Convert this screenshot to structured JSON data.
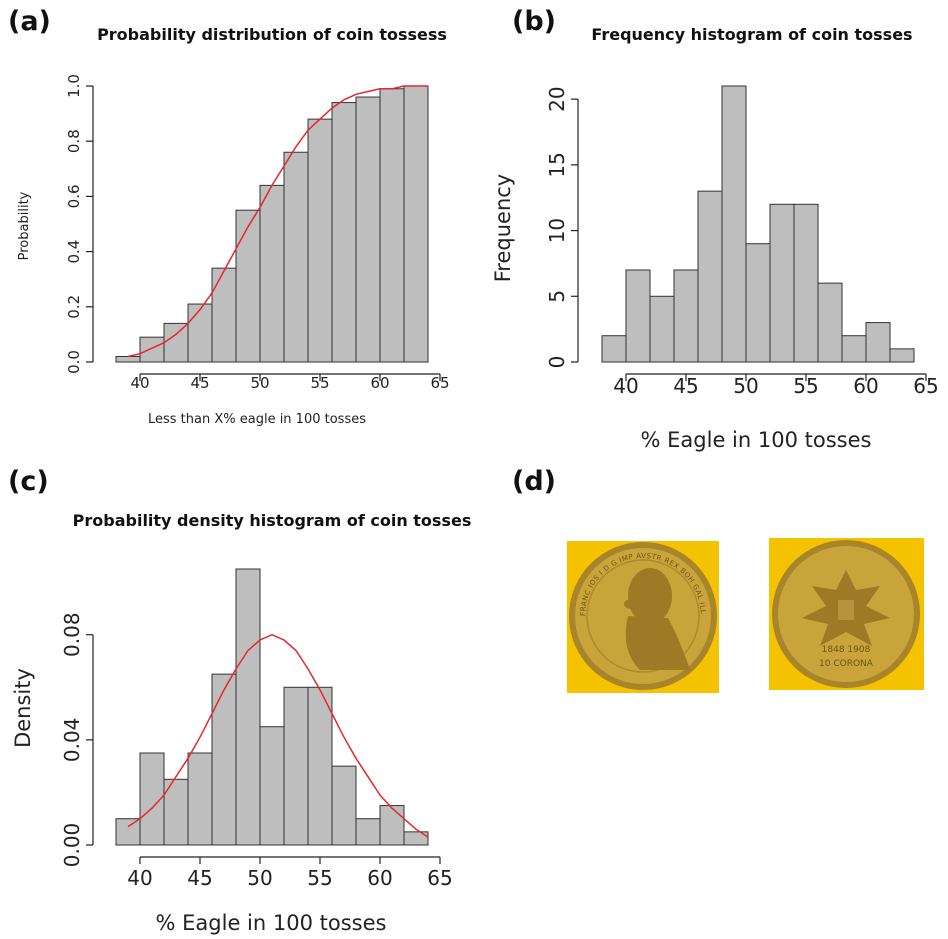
{
  "panels": {
    "a": "(a)",
    "b": "(b)",
    "c": "(c)",
    "d": "(d)"
  },
  "chart_data": [
    {
      "id": "a",
      "type": "bar",
      "title": "Probability distribution of coin tossess",
      "xlabel": "Less than X% eagle in 100 tosses",
      "ylabel": "Probability",
      "bin_edges": [
        38,
        40,
        42,
        44,
        46,
        48,
        50,
        52,
        54,
        56,
        58,
        60,
        62,
        64
      ],
      "values": [
        0.02,
        0.09,
        0.14,
        0.21,
        0.34,
        0.55,
        0.64,
        0.76,
        0.88,
        0.94,
        0.96,
        0.99,
        1.0
      ],
      "xlim": [
        37,
        65
      ],
      "ylim": [
        0,
        1.0
      ],
      "xticks": [
        40,
        45,
        50,
        55,
        60,
        65
      ],
      "yticks": [
        0.0,
        0.2,
        0.4,
        0.6,
        0.8,
        1.0
      ],
      "ytick_labels": [
        "0.0",
        "0.2",
        "0.4",
        "0.6",
        "0.8",
        "1.0"
      ],
      "curve": {
        "name": "",
        "color": "#e8262a",
        "x": [
          39,
          40,
          41,
          42,
          43,
          44,
          45,
          46,
          47,
          48,
          49,
          50,
          51,
          52,
          53,
          54,
          55,
          56,
          57,
          58,
          59,
          60,
          61,
          62,
          63,
          64
        ],
        "y": [
          0.02,
          0.03,
          0.05,
          0.07,
          0.1,
          0.14,
          0.19,
          0.25,
          0.33,
          0.41,
          0.49,
          0.56,
          0.64,
          0.71,
          0.78,
          0.84,
          0.88,
          0.92,
          0.95,
          0.97,
          0.98,
          0.99,
          0.99,
          1.0,
          1.0,
          1.0
        ]
      }
    },
    {
      "id": "b",
      "type": "bar",
      "title": "Frequency histogram of coin tosses",
      "xlabel": "% Eagle in 100 tosses",
      "ylabel": "Frequency",
      "bin_edges": [
        38,
        40,
        42,
        44,
        46,
        48,
        50,
        52,
        54,
        56,
        58,
        60,
        62,
        64
      ],
      "values": [
        2,
        7,
        5,
        7,
        13,
        21,
        9,
        12,
        12,
        6,
        2,
        3,
        1
      ],
      "xlim": [
        37,
        65
      ],
      "ylim": [
        0,
        21
      ],
      "xticks": [
        40,
        45,
        50,
        55,
        60,
        65
      ],
      "yticks": [
        0,
        5,
        10,
        15,
        20
      ],
      "ytick_labels": [
        "0",
        "5",
        "10",
        "15",
        "20"
      ]
    },
    {
      "id": "c",
      "type": "bar",
      "title": "Probability density histogram of coin tosses",
      "xlabel": "% Eagle in 100 tosses",
      "ylabel": "Density",
      "bin_edges": [
        38,
        40,
        42,
        44,
        46,
        48,
        50,
        52,
        54,
        56,
        58,
        60,
        62,
        64
      ],
      "values": [
        0.01,
        0.035,
        0.025,
        0.035,
        0.065,
        0.105,
        0.045,
        0.06,
        0.06,
        0.03,
        0.01,
        0.015,
        0.005
      ],
      "xlim": [
        37,
        65
      ],
      "ylim": [
        0,
        0.105
      ],
      "xticks": [
        40,
        45,
        50,
        55,
        60,
        65
      ],
      "yticks": [
        0,
        0.04,
        0.08
      ],
      "ytick_labels": [
        "0.00",
        "0.04",
        "0.08"
      ],
      "curve": {
        "name": "",
        "color": "#e8262a",
        "x": [
          39,
          40,
          41,
          42,
          43,
          44,
          45,
          46,
          47,
          48,
          49,
          50,
          51,
          52,
          53,
          54,
          55,
          56,
          57,
          58,
          59,
          60,
          61,
          62,
          63,
          64
        ],
        "y": [
          0.007,
          0.01,
          0.014,
          0.019,
          0.026,
          0.033,
          0.041,
          0.05,
          0.059,
          0.067,
          0.074,
          0.078,
          0.08,
          0.078,
          0.074,
          0.067,
          0.059,
          0.05,
          0.041,
          0.033,
          0.026,
          0.019,
          0.014,
          0.01,
          0.006,
          0.003
        ]
      }
    }
  ],
  "coins": {
    "left": {
      "icon": "coin-portrait-icon",
      "inscription": "FRANC IOS I D G IMP AVSTR REX BOH GAL ILL ETC",
      "colors": {
        "background": "#f5c200",
        "coin": "#c9a43a",
        "rim": "#a8842a"
      }
    },
    "right": {
      "icon": "coin-eagle-icon",
      "years": "1848 1908",
      "denomination": "10 CORONA",
      "colors": {
        "background": "#f5c200",
        "coin": "#c9a43a",
        "rim": "#a8842a"
      }
    }
  }
}
